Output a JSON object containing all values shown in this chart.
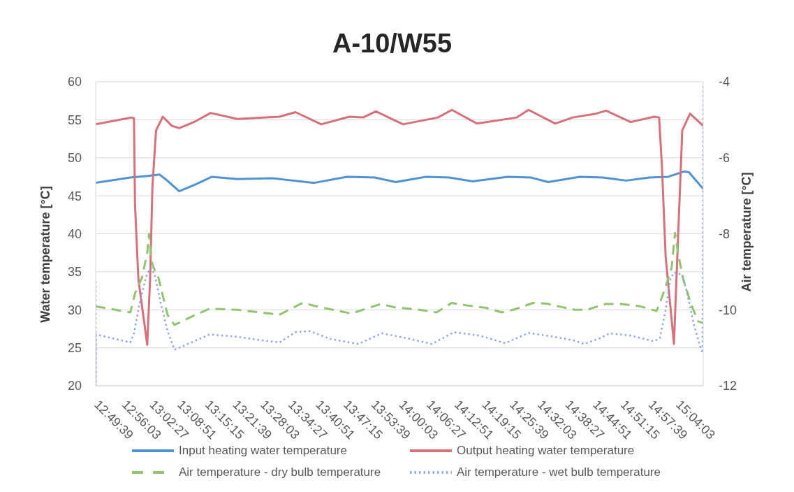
{
  "chart_data": {
    "type": "line",
    "title": "A-10/W55",
    "ylabel": "Water temperature [°C]",
    "y2label": "Air temperature [°C]",
    "xlim": [
      12.8275,
      15.1667
    ],
    "xticks": [
      {
        "value": 12.8275,
        "label": "12:49:39"
      },
      {
        "value": 12.93417,
        "label": "12:56:03"
      },
      {
        "value": 13.04083,
        "label": "13:02:27"
      },
      {
        "value": 13.1475,
        "label": "13:08:51"
      },
      {
        "value": 13.25417,
        "label": "13:15:15"
      },
      {
        "value": 13.36083,
        "label": "13:21:39"
      },
      {
        "value": 13.4675,
        "label": "13:28:03"
      },
      {
        "value": 13.57417,
        "label": "13:34:27"
      },
      {
        "value": 13.68083,
        "label": "13:40:51"
      },
      {
        "value": 13.7875,
        "label": "13:47:15"
      },
      {
        "value": 13.89417,
        "label": "13:53:39"
      },
      {
        "value": 14.00083,
        "label": "14:00:03"
      },
      {
        "value": 14.1075,
        "label": "14:06:27"
      },
      {
        "value": 14.21417,
        "label": "14:12:51"
      },
      {
        "value": 14.32083,
        "label": "14:19:15"
      },
      {
        "value": 14.4275,
        "label": "14:25:39"
      },
      {
        "value": 14.53417,
        "label": "14:32:03"
      },
      {
        "value": 14.64083,
        "label": "14:38:27"
      },
      {
        "value": 14.7475,
        "label": "14:44:51"
      },
      {
        "value": 14.85417,
        "label": "14:51:15"
      },
      {
        "value": 14.96083,
        "label": "14:57:39"
      },
      {
        "value": 15.0675,
        "label": "15:04:03"
      }
    ],
    "ylim": [
      20,
      60
    ],
    "yticks": [
      20,
      25,
      30,
      35,
      40,
      45,
      50,
      55,
      60
    ],
    "y2lim": [
      -12,
      -4
    ],
    "y2ticks": [
      -12,
      -10,
      -8,
      -6,
      -4
    ],
    "grid": "y",
    "legend": "bottom",
    "series": [
      {
        "name": "Input heating water temperature",
        "color": "#4f93d3",
        "line_style": "solid",
        "x": [
          12.8275,
          12.961,
          13.028,
          13.073,
          13.096,
          13.149,
          13.212,
          13.275,
          13.373,
          13.508,
          13.669,
          13.795,
          13.902,
          13.983,
          14.099,
          14.189,
          14.279,
          14.413,
          14.503,
          14.57,
          14.691,
          14.78,
          14.87,
          14.96,
          15.032,
          15.094,
          15.112,
          15.1667
        ],
        "values": [
          46.7,
          47.4,
          47.6,
          47.8,
          47.2,
          45.6,
          46.5,
          47.5,
          47.2,
          47.3,
          46.7,
          47.5,
          47.4,
          46.8,
          47.5,
          47.4,
          46.9,
          47.5,
          47.4,
          46.8,
          47.5,
          47.4,
          47.0,
          47.4,
          47.5,
          48.2,
          48.1,
          45.9
        ]
      },
      {
        "name": "Output heating water temperature",
        "color": "#d6707a",
        "line_style": "solid",
        "x": [
          12.8275,
          12.889,
          12.965,
          12.975,
          12.979,
          12.992,
          13.026,
          13.037,
          13.046,
          13.06,
          13.086,
          13.121,
          13.149,
          13.212,
          13.27,
          13.373,
          13.535,
          13.597,
          13.696,
          13.804,
          13.857,
          13.906,
          14.011,
          14.145,
          14.199,
          14.296,
          14.449,
          14.494,
          14.597,
          14.664,
          14.753,
          14.793,
          14.887,
          14.978,
          14.997,
          15.008,
          15.022,
          15.054,
          15.067,
          15.086,
          15.116,
          15.1667
        ],
        "values": [
          54.4,
          54.8,
          55.3,
          55.2,
          43.8,
          34.0,
          25.4,
          34.0,
          46.2,
          53.6,
          55.4,
          54.2,
          53.9,
          54.8,
          55.9,
          55.1,
          55.4,
          56.0,
          54.4,
          55.4,
          55.3,
          56.1,
          54.4,
          55.3,
          56.3,
          54.5,
          55.3,
          56.3,
          54.5,
          55.3,
          55.8,
          56.2,
          54.7,
          55.4,
          55.3,
          48.7,
          37.0,
          25.5,
          37.0,
          53.6,
          55.8,
          54.2
        ]
      },
      {
        "name": "Air temperature - dry bulb temperature",
        "color": "#92c36f",
        "line_style": "dashed",
        "axis": "y2",
        "x": [
          12.8275,
          12.961,
          12.979,
          13.006,
          13.026,
          13.033,
          13.042,
          13.051,
          13.069,
          13.104,
          13.131,
          13.194,
          13.266,
          13.373,
          13.463,
          13.535,
          13.624,
          13.696,
          13.741,
          13.812,
          13.857,
          13.925,
          13.983,
          14.064,
          14.14,
          14.198,
          14.261,
          14.332,
          14.391,
          14.44,
          14.512,
          14.565,
          14.61,
          14.673,
          14.718,
          14.79,
          14.852,
          14.924,
          14.987,
          15.0,
          15.022,
          15.045,
          15.058,
          15.072,
          15.09,
          15.121,
          15.148,
          15.1667
        ],
        "values": [
          -9.91,
          -10.07,
          -9.57,
          -9.15,
          -8.5,
          -8.0,
          -8.7,
          -8.9,
          -9.15,
          -10.13,
          -10.4,
          -10.19,
          -9.97,
          -10.0,
          -10.07,
          -10.13,
          -9.82,
          -9.94,
          -10.0,
          -10.1,
          -10.0,
          -9.85,
          -9.94,
          -9.99,
          -10.07,
          -9.82,
          -9.89,
          -9.95,
          -10.07,
          -9.99,
          -9.82,
          -9.84,
          -9.91,
          -10.0,
          -10.0,
          -9.85,
          -9.85,
          -9.91,
          -10.03,
          -9.82,
          -9.39,
          -8.9,
          -7.98,
          -8.6,
          -9.2,
          -9.88,
          -10.31,
          -10.34
        ]
      },
      {
        "name": "Air temperature - wet bulb temperature",
        "color": "#8ea5e3",
        "line_style": "dotted",
        "axis": "y2",
        "x": [
          12.8275,
          12.828,
          12.829,
          12.961,
          12.975,
          12.997,
          13.019,
          13.028,
          13.042,
          13.055,
          13.078,
          13.104,
          13.131,
          13.176,
          13.266,
          13.373,
          13.463,
          13.535,
          13.597,
          13.651,
          13.732,
          13.839,
          13.929,
          14.019,
          14.122,
          14.207,
          14.306,
          14.404,
          14.494,
          14.592,
          14.664,
          14.709,
          14.772,
          14.807,
          14.887,
          14.978,
          15.0,
          15.022,
          15.04,
          15.054,
          15.086,
          15.103,
          15.13,
          15.153,
          15.164,
          15.1667
        ],
        "values": [
          -9.25,
          -12,
          -10.65,
          -10.86,
          -10.62,
          -9.82,
          -9.2,
          -9.02,
          -8.9,
          -9.08,
          -9.82,
          -10.56,
          -11.05,
          -10.92,
          -10.65,
          -10.71,
          -10.8,
          -10.86,
          -10.59,
          -10.56,
          -10.77,
          -10.9,
          -10.62,
          -10.74,
          -10.9,
          -10.59,
          -10.68,
          -10.88,
          -10.61,
          -10.71,
          -10.8,
          -10.9,
          -10.74,
          -10.62,
          -10.68,
          -10.83,
          -10.74,
          -10.0,
          -9.2,
          -9.02,
          -9.08,
          -9.51,
          -10.37,
          -10.92,
          -11.14,
          -4.05
        ]
      }
    ]
  }
}
